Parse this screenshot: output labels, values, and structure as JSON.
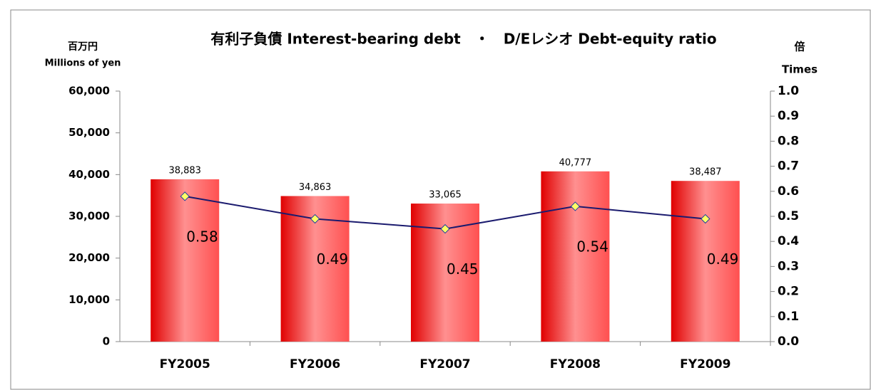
{
  "chart_data": {
    "type": "bar",
    "title": "有利子負債 Interest-bearing debt　・　D/Eレシオ Debt-equity ratio",
    "y_label": "百万円",
    "y_label_en": "Millions of yen",
    "y2_label": "倍",
    "y2_label_en": "Times",
    "categories": [
      "FY2005",
      "FY2006",
      "FY2007",
      "FY2008",
      "FY2009"
    ],
    "series": [
      {
        "type": "bar",
        "color": "#ff3030",
        "values": [
          38883,
          34863,
          33065,
          40777,
          38487
        ],
        "value_labels": [
          "38,883",
          "34,863",
          "33,065",
          "40,777",
          "38,487"
        ]
      },
      {
        "type": "line",
        "axis": "y2",
        "color": "#1a1a6e",
        "marker_color": "#ffff66",
        "values": [
          0.58,
          0.49,
          0.45,
          0.54,
          0.49
        ]
      }
    ],
    "ylim": [
      0,
      60000
    ],
    "yticks": [
      0,
      {
        "value": 10000,
        "label": "10,000"
      },
      {
        "value": 20000,
        "label": "20,000"
      },
      {
        "value": 30000,
        "label": "30,000"
      },
      {
        "value": 40000,
        "label": "40,000"
      },
      {
        "value": 50000,
        "label": "50,000"
      },
      {
        "value": 60000,
        "label": "60,000"
      }
    ],
    "y2lim": [
      0,
      1
    ],
    "y2ticks": [
      {
        "value": 0,
        "label": "0.0"
      },
      0.1,
      0.2,
      0.3,
      0.4,
      0.5,
      0.6,
      0.7,
      0.8,
      0.9,
      {
        "value": 1,
        "label": "1.0"
      }
    ],
    "grid": false
  }
}
